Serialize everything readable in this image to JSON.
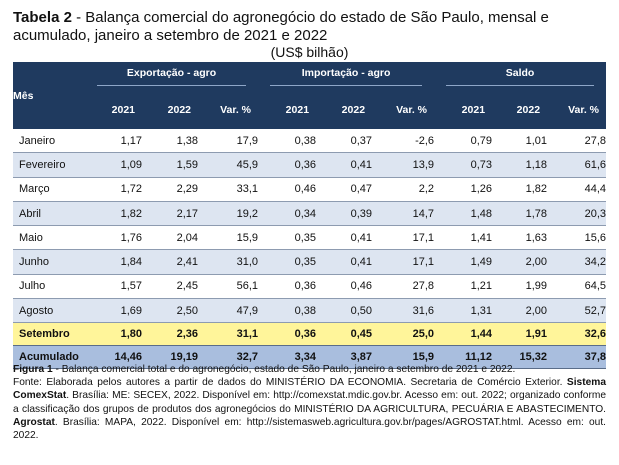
{
  "title": {
    "label": "Tabela 2",
    "text": " - Balança comercial do agronegócio do estado de São Paulo, mensal e acumulado, janeiro a setembro de 2021 e 2022"
  },
  "unit": "(US$ bilhão)",
  "table": {
    "month_header": "Mês",
    "groups": [
      "Exportação - agro",
      "Importação - agro",
      "Saldo"
    ],
    "subheaders": [
      "2021",
      "2022",
      "Var. %",
      "2021",
      "2022",
      "Var. %",
      "2021",
      "2022",
      "Var. %"
    ],
    "rows": [
      {
        "month": "Janeiro",
        "values": [
          "1,17",
          "1,38",
          "17,9",
          "0,38",
          "0,37",
          "-2,6",
          "0,79",
          "1,01",
          "27,8"
        ]
      },
      {
        "month": "Fevereiro",
        "values": [
          "1,09",
          "1,59",
          "45,9",
          "0,36",
          "0,41",
          "13,9",
          "0,73",
          "1,18",
          "61,6"
        ]
      },
      {
        "month": "Março",
        "values": [
          "1,72",
          "2,29",
          "33,1",
          "0,46",
          "0,47",
          "2,2",
          "1,26",
          "1,82",
          "44,4"
        ]
      },
      {
        "month": "Abril",
        "values": [
          "1,82",
          "2,17",
          "19,2",
          "0,34",
          "0,39",
          "14,7",
          "1,48",
          "1,78",
          "20,3"
        ]
      },
      {
        "month": "Maio",
        "values": [
          "1,76",
          "2,04",
          "15,9",
          "0,35",
          "0,41",
          "17,1",
          "1,41",
          "1,63",
          "15,6"
        ]
      },
      {
        "month": "Junho",
        "values": [
          "1,84",
          "2,41",
          "31,0",
          "0,35",
          "0,41",
          "17,1",
          "1,49",
          "2,00",
          "34,2"
        ]
      },
      {
        "month": "Julho",
        "values": [
          "1,57",
          "2,45",
          "56,1",
          "0,36",
          "0,46",
          "27,8",
          "1,21",
          "1,99",
          "64,5"
        ]
      },
      {
        "month": "Agosto",
        "values": [
          "1,69",
          "2,50",
          "47,9",
          "0,38",
          "0,50",
          "31,6",
          "1,31",
          "2,00",
          "52,7"
        ]
      }
    ],
    "highlight_row": {
      "month": "Setembro",
      "values": [
        "1,80",
        "2,36",
        "31,1",
        "0,36",
        "0,45",
        "25,0",
        "1,44",
        "1,91",
        "32,6"
      ]
    },
    "total_row": {
      "month": "Acumulado",
      "values": [
        "14,46",
        "19,19",
        "32,7",
        "3,34",
        "3,87",
        "15,9",
        "11,12",
        "15,32",
        "37,8"
      ]
    }
  },
  "notes": {
    "figure_label": "Figura 1",
    "figure_text": " - Balança comercial total e do agronegócio, estado de São Paulo, janeiro a setembro de 2021 e 2022.",
    "source_a": "Fonte: Elaborada pelos autores a partir de dados do MINISTÉRIO DA ECONOMIA. Secretaria de Comércio Exterior. ",
    "source_b_bold": "Sistema ComexStat",
    "source_c": ". Brasília: ME: SECEX, 2022. Disponível em: http://comexstat.mdic.gov.br. Acesso em: out. 2022; organizado conforme a classificação dos grupos de produtos dos agronegócios do MINISTÉRIO DA AGRICULTURA, PECUÁRIA E ABASTECIMENTO. ",
    "source_d_bold": "Agrostat",
    "source_e": ". Brasília: MAPA, 2022. Disponível em: http://sistemasweb.agricultura.gov.br/pages/AGROSTAT.html. Acesso em: out. 2022."
  },
  "colors": {
    "header_bg": "#1f3a5f",
    "stripe": "#dde5f1",
    "highlight": "#fff59a",
    "total_bg": "#a9bede"
  }
}
